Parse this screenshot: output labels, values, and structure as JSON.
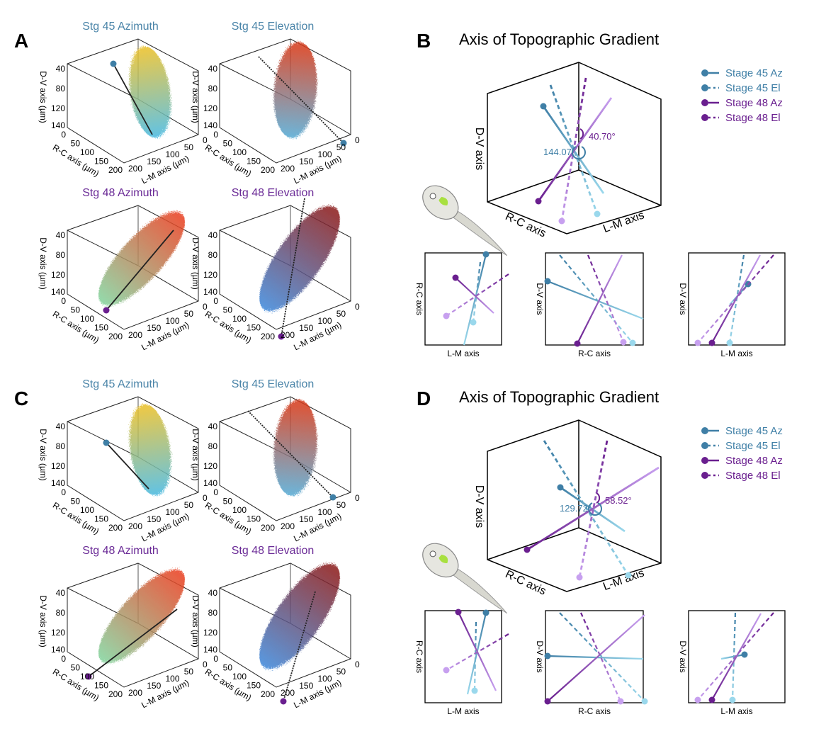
{
  "colors": {
    "stage45": "#3f7fa6",
    "stage45_light": "#9ad8ec",
    "stage48": "#6a1f8f",
    "stage48_light": "#c7a0ef",
    "stage45_title": "#4a84a8",
    "stage48_title": "#6a2a96"
  },
  "panels": {
    "A": {
      "letter": "A",
      "plots": [
        {
          "title": "Stg 45 Azimuth",
          "stage": "45"
        },
        {
          "title": "Stg 45 Elevation",
          "stage": "45"
        },
        {
          "title": "Stg 48 Azimuth",
          "stage": "48"
        },
        {
          "title": "Stg 48 Elevation",
          "stage": "48"
        }
      ]
    },
    "C": {
      "letter": "C",
      "plots": [
        {
          "title": "Stg 45 Azimuth",
          "stage": "45"
        },
        {
          "title": "Stg 45 Elevation",
          "stage": "45"
        },
        {
          "title": "Stg 48 Azimuth",
          "stage": "48"
        },
        {
          "title": "Stg 48 Elevation",
          "stage": "48"
        }
      ]
    },
    "B": {
      "letter": "B",
      "title": "Axis of Topographic Gradient",
      "angle45": "144.07°",
      "angle48": "40.70°"
    },
    "D": {
      "letter": "D",
      "title": "Axis of Topographic Gradient",
      "angle45": "129.72°",
      "angle48": "58.52°"
    }
  },
  "axes3d": {
    "dv_label": "D-V axis (µm)",
    "rc_label": "R-C axis (µm)",
    "lm_label": "L-M axis (µm)",
    "dv_ticks": [
      "40",
      "80",
      "120",
      "140"
    ],
    "rc_ticks": [
      "0",
      "50",
      "100",
      "150",
      "200"
    ],
    "lm_ticks": [
      "200",
      "150",
      "100",
      "50",
      "0"
    ]
  },
  "summary_axes": {
    "dv": "D-V axis",
    "rc": "R-C axis",
    "lm": "L-M axis"
  },
  "legend": [
    {
      "label": "Stage 45 Az",
      "stage": "45",
      "style": "solid"
    },
    {
      "label": "Stage 45 El",
      "stage": "45",
      "style": "dashed"
    },
    {
      "label": "Stage 48 Az",
      "stage": "48",
      "style": "solid"
    },
    {
      "label": "Stage 48 El",
      "stage": "48",
      "style": "dashed"
    }
  ]
}
